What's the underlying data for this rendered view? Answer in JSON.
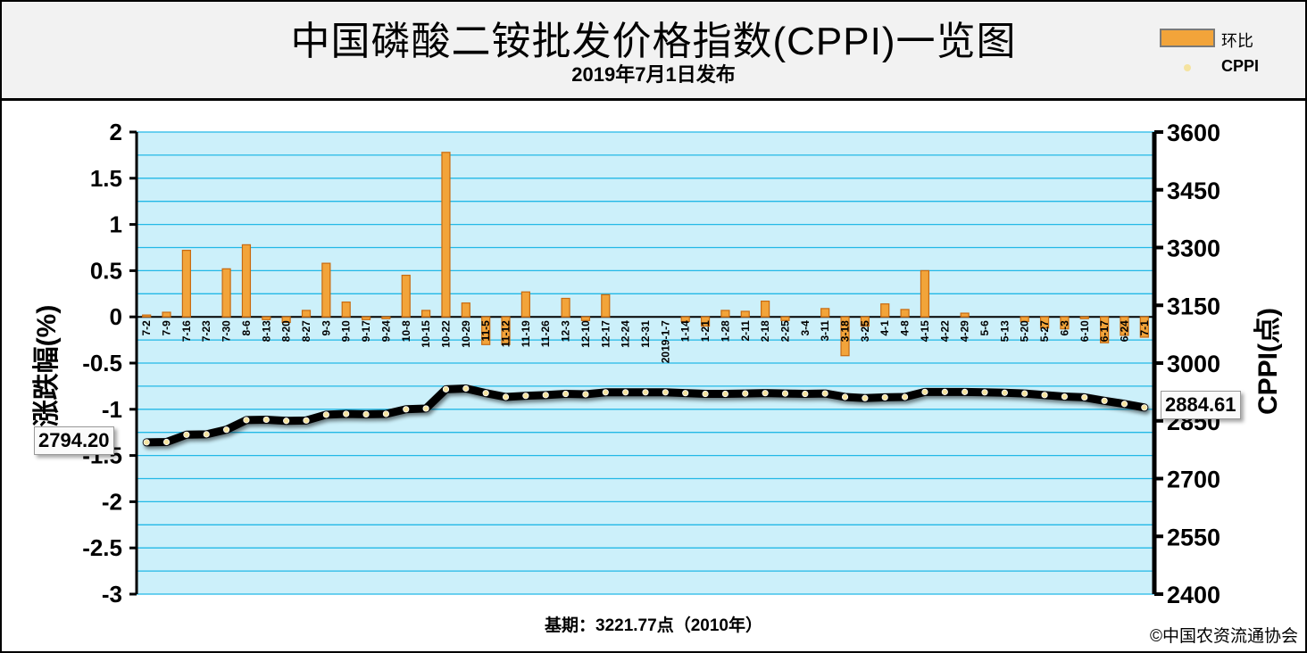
{
  "header": {
    "title": "中国磷酸二铵批发价格指数(CPPI)一览图",
    "subtitle": "2019年7月1日发布"
  },
  "legend": {
    "bar_label": "环比",
    "line_label": "CPPI"
  },
  "footer": {
    "base_note": "基期：3221.77点（2010年）",
    "copyright": "©中国农资流通协会"
  },
  "callouts": {
    "start": "2794.20",
    "end": "2884.61"
  },
  "colors": {
    "plot_bg": "#ccf0fa",
    "grid": "#22b8e6",
    "bar_fill": "#f2a43a",
    "bar_edge": "#c86a10",
    "line": "#000000",
    "marker": "#f5e3a0"
  },
  "chart_data": {
    "type": "bar+line",
    "categories": [
      "7-2",
      "7-9",
      "7-16",
      "7-23",
      "7-30",
      "8-6",
      "8-13",
      "8-20",
      "8-27",
      "9-3",
      "9-10",
      "9-17",
      "9-24",
      "10-8",
      "10-15",
      "10-22",
      "10-29",
      "11-5",
      "11-12",
      "11-19",
      "11-26",
      "12-3",
      "12-10",
      "12-17",
      "12-24",
      "12-31",
      "2019-1-7",
      "1-14",
      "1-21",
      "1-28",
      "2-11",
      "2-18",
      "2-25",
      "3-4",
      "3-11",
      "3-18",
      "3-25",
      "4-1",
      "4-8",
      "4-15",
      "4-22",
      "4-29",
      "5-6",
      "5-13",
      "5-20",
      "5-27",
      "6-3",
      "6-10",
      "6-17",
      "6-24",
      "7-1"
    ],
    "series": [
      {
        "name": "环比",
        "axis": "left",
        "type": "bar",
        "values": [
          0.02,
          0.05,
          0.72,
          0,
          0.52,
          0.78,
          -0.03,
          -0.06,
          0.07,
          0.58,
          0.16,
          -0.03,
          -0.02,
          0.45,
          0.07,
          1.78,
          0.15,
          -0.3,
          -0.3,
          0.27,
          0,
          0.2,
          -0.04,
          0.24,
          0,
          0,
          0,
          -0.05,
          -0.1,
          0.07,
          0.06,
          0.17,
          -0.04,
          0,
          0.09,
          -0.42,
          -0.1,
          0.14,
          0.08,
          0.5,
          0,
          0.04,
          0,
          0,
          -0.05,
          -0.12,
          -0.13,
          -0.02,
          -0.28,
          -0.2,
          -0.22
        ]
      },
      {
        "name": "CPPI",
        "axis": "right",
        "type": "line",
        "values": [
          2794.2,
          2795,
          2814,
          2815,
          2827,
          2852,
          2853,
          2850,
          2851,
          2866,
          2868,
          2867,
          2868,
          2880,
          2882,
          2932,
          2934,
          2922,
          2912,
          2915,
          2917,
          2920,
          2919,
          2924,
          2924,
          2924,
          2924,
          2922,
          2920,
          2920,
          2921,
          2922,
          2921,
          2920,
          2921,
          2912,
          2909,
          2911,
          2912,
          2925,
          2925,
          2925,
          2924,
          2923,
          2921,
          2917,
          2913,
          2911,
          2902,
          2894,
          2884.61
        ]
      }
    ],
    "xlabel": "",
    "ylabel": "涨跌幅(%)",
    "y2label": "CPPI(点)",
    "ylim": [
      -3,
      2
    ],
    "y2lim": [
      2400,
      3600
    ],
    "yticks": [
      "2",
      "1.5",
      "1",
      "0.5",
      "0",
      "-0.5",
      "-1",
      "-1.5",
      "-2",
      "-2.5",
      "-3"
    ],
    "y2ticks": [
      "3600",
      "3450",
      "3300",
      "3150",
      "3000",
      "2850",
      "2700",
      "2550",
      "2400"
    ],
    "grid": true,
    "legend_position": "top-right"
  }
}
